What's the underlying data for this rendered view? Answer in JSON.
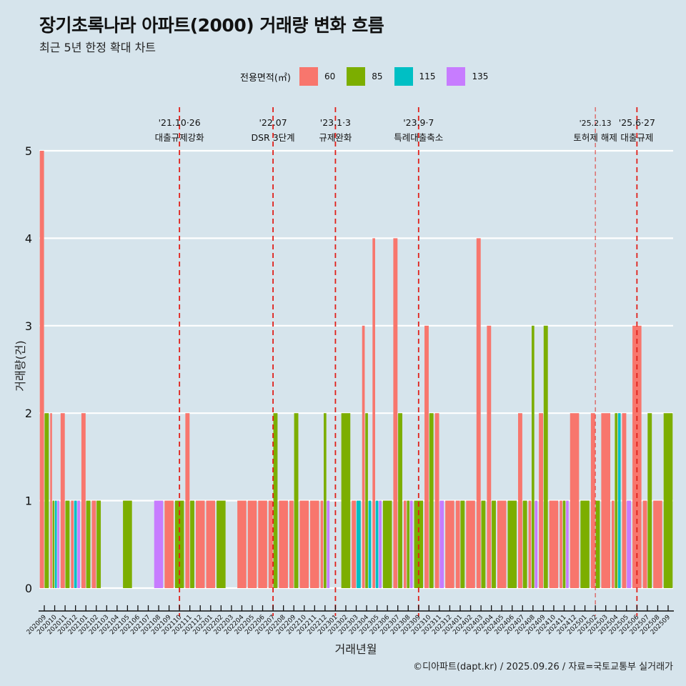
{
  "title": "장기초록나라 아파트(2000) 거래량 변화 흐름",
  "subtitle": "최근 5년 한정 확대 차트",
  "caption": "©디아파트(dapt.kr) / 2025.09.26 / 자료=국토교통부 실거래가",
  "legend": {
    "title": "전용면적(㎡)",
    "items": [
      {
        "label": "60",
        "color": "#F8766D"
      },
      {
        "label": "85",
        "color": "#7CAE00"
      },
      {
        "label": "115",
        "color": "#00BFC4"
      },
      {
        "label": "135",
        "color": "#C77CFF"
      }
    ]
  },
  "chart_data": {
    "type": "bar",
    "title": "장기초록나라 아파트(2000) 거래량 변화 흐름",
    "xlabel": "거래년월",
    "ylabel": "거래량(건)",
    "ylim": [
      0,
      5
    ],
    "yticks": [
      "0",
      "1",
      "2",
      "3",
      "4",
      "5"
    ],
    "grid": true,
    "legend_position": "top",
    "categories": [
      "202009",
      "202010",
      "202011",
      "202012",
      "202101",
      "202102",
      "202103",
      "202104",
      "202105",
      "202106",
      "202107",
      "202108",
      "202109",
      "202110",
      "202111",
      "202112",
      "202201",
      "202202",
      "202203",
      "202204",
      "202205",
      "202206",
      "202207",
      "202208",
      "202209",
      "202210",
      "202211",
      "202212",
      "202301",
      "202302",
      "202303",
      "202304",
      "202305",
      "202306",
      "202307",
      "202308",
      "202309",
      "202310",
      "202311",
      "202312",
      "202401",
      "202402",
      "202403",
      "202404",
      "202405",
      "202406",
      "202407",
      "202408",
      "202409",
      "202410",
      "202411",
      "202412",
      "202501",
      "202502",
      "202503",
      "202504",
      "202505",
      "202506",
      "202507",
      "202508",
      "202509"
    ],
    "series": [
      {
        "name": "60",
        "color": "#F8766D",
        "values": [
          5,
          2,
          2,
          1,
          2,
          1,
          0,
          0,
          0,
          0,
          0,
          0,
          1,
          0,
          2,
          1,
          1,
          0,
          0,
          1,
          1,
          1,
          1,
          1,
          1,
          1,
          1,
          1,
          0,
          0,
          1,
          3,
          4,
          0,
          4,
          1,
          0,
          3,
          2,
          1,
          1,
          1,
          4,
          3,
          1,
          0,
          2,
          1,
          2,
          1,
          1,
          2,
          0,
          2,
          2,
          1,
          2,
          3,
          1,
          1,
          0
        ]
      },
      {
        "name": "85",
        "color": "#7CAE00",
        "values": [
          2,
          1,
          1,
          0,
          1,
          1,
          0,
          0,
          1,
          0,
          0,
          0,
          0,
          1,
          1,
          0,
          0,
          1,
          0,
          0,
          0,
          0,
          2,
          0,
          2,
          0,
          0,
          2,
          0,
          2,
          0,
          2,
          0,
          1,
          2,
          1,
          1,
          2,
          0,
          0,
          1,
          0,
          1,
          1,
          0,
          1,
          1,
          3,
          3,
          0,
          1,
          0,
          1,
          1,
          0,
          2,
          0,
          0,
          2,
          0,
          2
        ]
      },
      {
        "name": "115",
        "color": "#00BFC4",
        "values": [
          0,
          1,
          0,
          1,
          0,
          0,
          0,
          0,
          0,
          0,
          0,
          0,
          0,
          0,
          0,
          0,
          0,
          0,
          0,
          0,
          0,
          0,
          0,
          0,
          0,
          0,
          0,
          0,
          0,
          0,
          1,
          1,
          1,
          0,
          0,
          0,
          0,
          0,
          0,
          0,
          0,
          0,
          0,
          0,
          0,
          0,
          0,
          0,
          0,
          0,
          0,
          0,
          0,
          0,
          0,
          2,
          0,
          0,
          0,
          0,
          0
        ]
      },
      {
        "name": "135",
        "color": "#C77CFF",
        "values": [
          0,
          1,
          0,
          1,
          0,
          0,
          0,
          0,
          0,
          0,
          0,
          1,
          0,
          0,
          0,
          0,
          0,
          0,
          0,
          0,
          0,
          0,
          0,
          0,
          0,
          0,
          0,
          1,
          0,
          0,
          0,
          0,
          1,
          0,
          0,
          1,
          0,
          0,
          1,
          0,
          0,
          0,
          0,
          0,
          0,
          0,
          0,
          1,
          0,
          0,
          1,
          0,
          0,
          0,
          0,
          0,
          1,
          0,
          0,
          0,
          0
        ]
      }
    ],
    "annotations": [
      {
        "month": "202110",
        "date": "'21.10·26",
        "label": "대출규제강화",
        "style": "bold"
      },
      {
        "month": "202207",
        "date": "'22.07",
        "label": "DSR 3단계",
        "style": "bold"
      },
      {
        "month": "202301",
        "date": "'23.1·3",
        "label": "규제완화",
        "style": "bold"
      },
      {
        "month": "202309",
        "date": "'23.9·7",
        "label": "특례대출축소",
        "style": "bold"
      },
      {
        "month": "202502",
        "date": "'25.2.13",
        "label": "토허제 해제",
        "style": "light"
      },
      {
        "month": "202506",
        "date": "'25.6·27",
        "label": "대출규제",
        "style": "bold"
      }
    ]
  }
}
